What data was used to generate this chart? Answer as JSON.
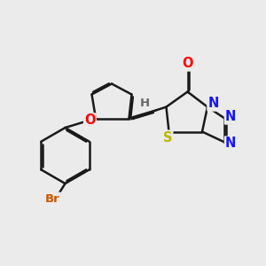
{
  "bg_color": "#ebebeb",
  "bond_color": "#1a1a1a",
  "bond_width": 1.8,
  "dbo": 0.055,
  "atom_colors": {
    "O": "#ff0000",
    "N": "#1414ff",
    "S": "#b8b800",
    "Br": "#cc5500",
    "H": "#666666",
    "C": "#1a1a1a"
  },
  "font_size": 10.5
}
